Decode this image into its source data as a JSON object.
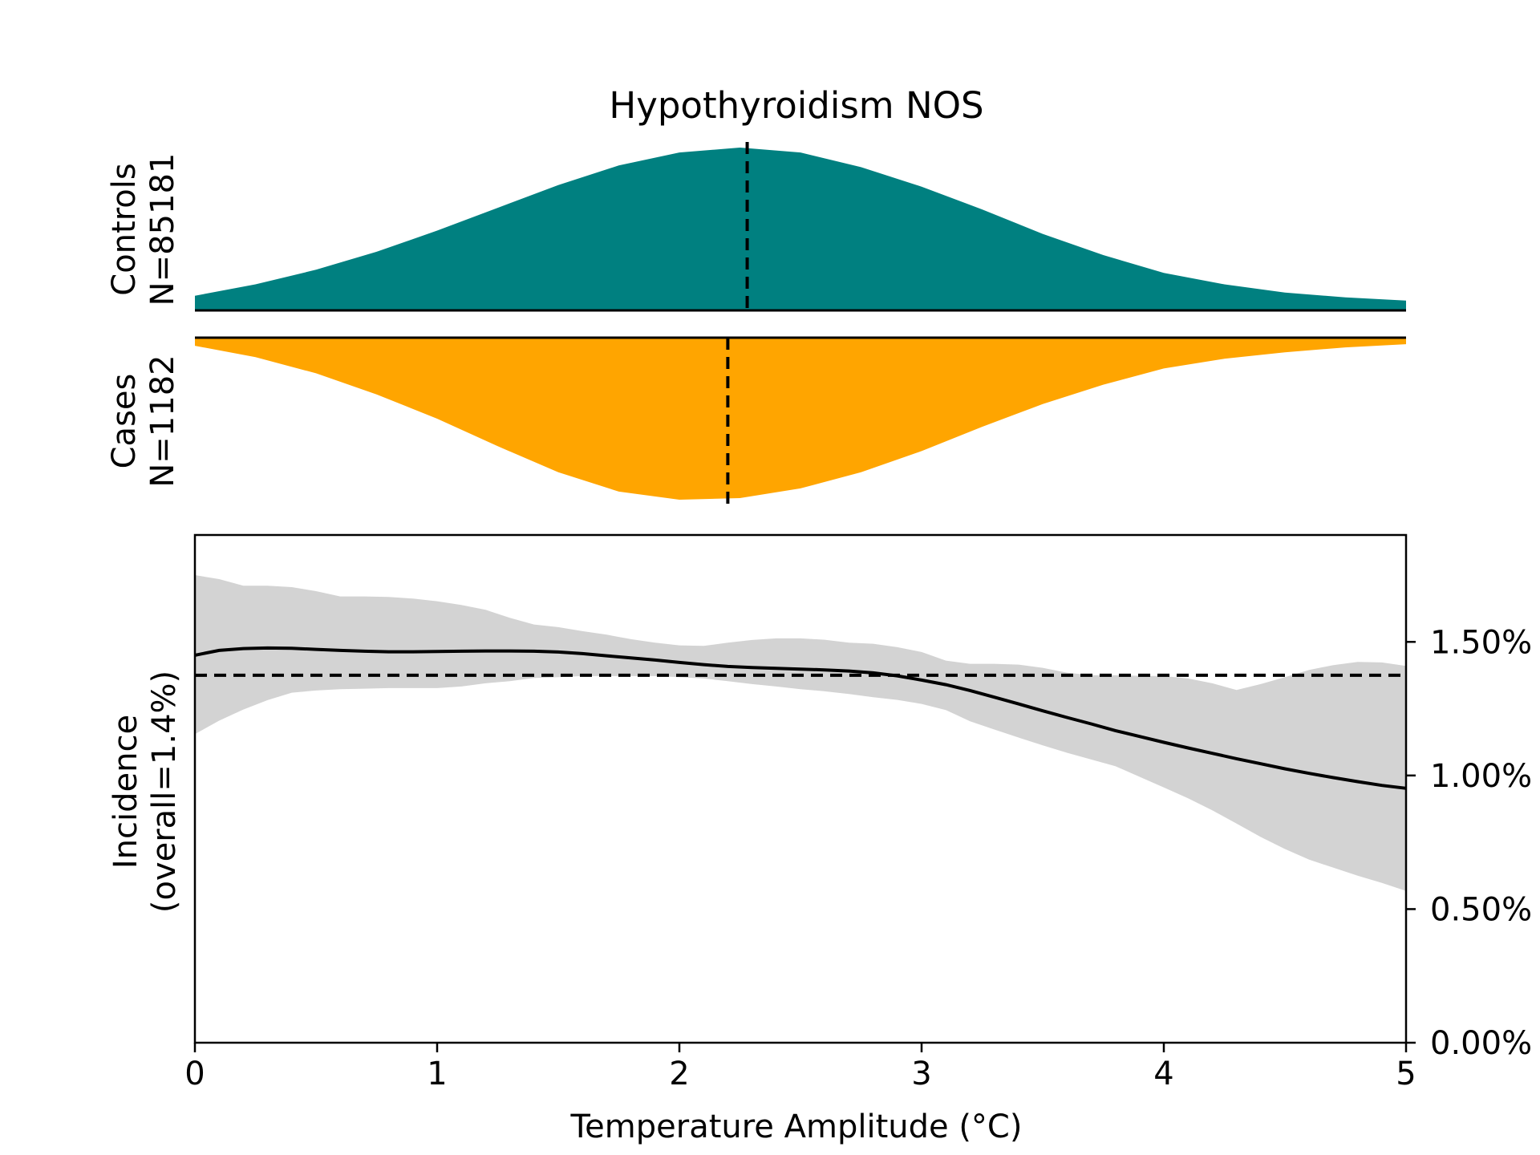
{
  "chart_data": {
    "type": "area",
    "title": "Hypothyroidism NOS",
    "xlabel": "Temperature Amplitude (°C)",
    "xlim": [
      0,
      5
    ],
    "x_ticks": [
      "0",
      "1",
      "2",
      "3",
      "4",
      "5"
    ],
    "x_tick_values": [
      0,
      1,
      2,
      3,
      4,
      5
    ],
    "colors": {
      "controls": "#008080",
      "cases": "#FFA500",
      "ci_band": "#D3D3D3",
      "line": "#000000"
    },
    "controls": {
      "label_line1": "Controls",
      "label_line2": "N=85181",
      "median": 2.28,
      "density": {
        "x": [
          0,
          0.25,
          0.5,
          0.75,
          1,
          1.25,
          1.5,
          1.75,
          2,
          2.25,
          2.5,
          2.75,
          3,
          3.25,
          3.5,
          3.75,
          4,
          4.25,
          4.5,
          4.75,
          5
        ],
        "y": [
          0.09,
          0.16,
          0.25,
          0.36,
          0.49,
          0.63,
          0.77,
          0.89,
          0.97,
          1.0,
          0.97,
          0.88,
          0.76,
          0.62,
          0.47,
          0.34,
          0.23,
          0.16,
          0.11,
          0.08,
          0.06
        ]
      }
    },
    "cases": {
      "label_line1": "Cases",
      "label_line2": "N=1182",
      "median": 2.2,
      "density": {
        "x": [
          0,
          0.25,
          0.5,
          0.75,
          1,
          1.25,
          1.5,
          1.75,
          2,
          2.25,
          2.5,
          2.75,
          3,
          3.25,
          3.5,
          3.75,
          4,
          4.25,
          4.5,
          4.75,
          5
        ],
        "y": [
          0.05,
          0.12,
          0.22,
          0.35,
          0.5,
          0.67,
          0.83,
          0.95,
          1.0,
          0.99,
          0.93,
          0.83,
          0.7,
          0.55,
          0.41,
          0.29,
          0.19,
          0.13,
          0.09,
          0.06,
          0.04
        ]
      }
    },
    "incidence": {
      "ylabel_line1": "Incidence",
      "ylabel_line2": "(overall=1.4%)",
      "ylim": [
        0,
        0.019
      ],
      "y_ticks": [
        "0.00%",
        "0.50%",
        "1.00%",
        "1.50%"
      ],
      "y_tick_values": [
        0,
        0.005,
        0.01,
        0.015
      ],
      "overall": 0.01375,
      "x": [
        0,
        0.1,
        0.2,
        0.3,
        0.4,
        0.5,
        0.6,
        0.7,
        0.8,
        0.9,
        1.0,
        1.1,
        1.2,
        1.3,
        1.4,
        1.5,
        1.6,
        1.7,
        1.8,
        1.9,
        2.0,
        2.1,
        2.2,
        2.3,
        2.4,
        2.5,
        2.6,
        2.7,
        2.8,
        2.9,
        3.0,
        3.1,
        3.2,
        3.3,
        3.4,
        3.5,
        3.6,
        3.7,
        3.8,
        3.9,
        4.0,
        4.1,
        4.2,
        4.3,
        4.4,
        4.5,
        4.6,
        4.7,
        4.8,
        4.9,
        5.0
      ],
      "estimate": [
        0.0145,
        0.01468,
        0.01475,
        0.01477,
        0.01476,
        0.01472,
        0.01468,
        0.01465,
        0.01463,
        0.01463,
        0.01464,
        0.01465,
        0.01466,
        0.01466,
        0.01465,
        0.01462,
        0.01456,
        0.01448,
        0.0144,
        0.01432,
        0.01423,
        0.01415,
        0.01408,
        0.01404,
        0.01401,
        0.01398,
        0.01395,
        0.01391,
        0.01384,
        0.01373,
        0.01357,
        0.0134,
        0.01318,
        0.01293,
        0.01268,
        0.01242,
        0.01217,
        0.01193,
        0.01168,
        0.01146,
        0.01124,
        0.01103,
        0.01083,
        0.01063,
        0.01044,
        0.01025,
        0.01008,
        0.00992,
        0.00977,
        0.00963,
        0.00952
      ],
      "ci_upper": [
        0.0175,
        0.01735,
        0.0171,
        0.0171,
        0.01705,
        0.0169,
        0.0167,
        0.0167,
        0.01668,
        0.01662,
        0.01652,
        0.01638,
        0.0162,
        0.0159,
        0.01565,
        0.01555,
        0.0154,
        0.01527,
        0.0151,
        0.01497,
        0.01487,
        0.01485,
        0.01497,
        0.01507,
        0.01513,
        0.01513,
        0.01508,
        0.01497,
        0.01493,
        0.0148,
        0.01462,
        0.0143,
        0.01418,
        0.01418,
        0.01415,
        0.01403,
        0.01385,
        0.01375,
        0.01375,
        0.01373,
        0.01372,
        0.01363,
        0.01345,
        0.0132,
        0.01342,
        0.01368,
        0.01395,
        0.01413,
        0.01425,
        0.01423,
        0.0141
      ],
      "ci_lower": [
        0.01155,
        0.01205,
        0.01247,
        0.01282,
        0.0131,
        0.01318,
        0.01323,
        0.01325,
        0.01327,
        0.01327,
        0.01327,
        0.01333,
        0.01345,
        0.01353,
        0.01365,
        0.01368,
        0.01372,
        0.01372,
        0.01372,
        0.01372,
        0.01368,
        0.01363,
        0.01353,
        0.01342,
        0.01333,
        0.01323,
        0.01315,
        0.01305,
        0.01293,
        0.01283,
        0.01268,
        0.01245,
        0.01203,
        0.01172,
        0.01142,
        0.01113,
        0.01085,
        0.0106,
        0.01035,
        0.00995,
        0.00955,
        0.00915,
        0.0087,
        0.0082,
        0.0077,
        0.00725,
        0.00685,
        0.00655,
        0.00625,
        0.00598,
        0.00568
      ]
    }
  }
}
